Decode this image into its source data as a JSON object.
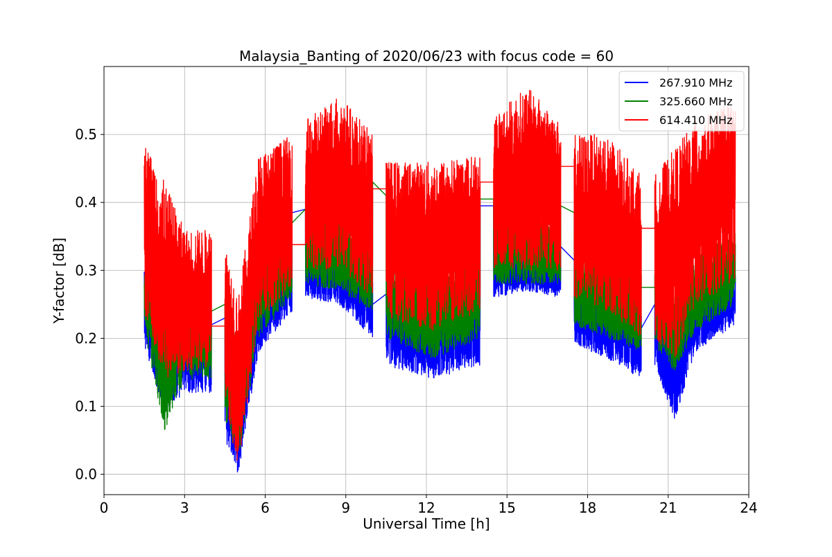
{
  "chart_data": {
    "type": "line",
    "title": "Malaysia_Banting of 2020/06/23 with focus code = 60",
    "xlabel": "Universal Time [h]",
    "ylabel": "Y-factor [dB]",
    "xlim": [
      0,
      24
    ],
    "ylim": [
      -0.03,
      0.6
    ],
    "xticks": [
      0,
      3,
      6,
      9,
      12,
      15,
      18,
      21,
      24
    ],
    "xtick_labels": [
      "0",
      "3",
      "6",
      "9",
      "12",
      "15",
      "18",
      "21",
      "24"
    ],
    "yticks": [
      0.0,
      0.1,
      0.2,
      0.3,
      0.4,
      0.5
    ],
    "ytick_labels": [
      "0.0",
      "0.1",
      "0.2",
      "0.3",
      "0.4",
      "0.5"
    ],
    "grid": true,
    "legend_position": "top-right",
    "segments": [
      {
        "start": 1.5,
        "end": 4.0
      },
      {
        "start": 4.5,
        "end": 7.0
      },
      {
        "start": 7.5,
        "end": 10.0
      },
      {
        "start": 10.5,
        "end": 14.0
      },
      {
        "start": 14.5,
        "end": 17.0
      },
      {
        "start": 17.5,
        "end": 20.0
      },
      {
        "start": 20.5,
        "end": 23.5
      }
    ],
    "series": [
      {
        "name": "267.910 MHz",
        "color": "#0000ff",
        "envelope": {
          "x": [
            1.5,
            2.25,
            3.0,
            4.0,
            4.5,
            5.0,
            5.75,
            7.0,
            7.5,
            8.75,
            10.0,
            10.5,
            12.25,
            14.0,
            14.5,
            15.75,
            17.0,
            17.5,
            18.75,
            20.0,
            20.5,
            21.25,
            22.0,
            23.5
          ],
          "low": [
            0.19,
            0.09,
            0.12,
            0.12,
            0.05,
            0.0,
            0.18,
            0.24,
            0.26,
            0.25,
            0.2,
            0.16,
            0.14,
            0.16,
            0.26,
            0.27,
            0.26,
            0.19,
            0.17,
            0.14,
            0.16,
            0.08,
            0.18,
            0.22
          ],
          "high": [
            0.3,
            0.26,
            0.24,
            0.22,
            0.2,
            0.15,
            0.3,
            0.34,
            0.34,
            0.34,
            0.3,
            0.28,
            0.26,
            0.28,
            0.32,
            0.34,
            0.32,
            0.3,
            0.28,
            0.26,
            0.26,
            0.2,
            0.28,
            0.3
          ]
        },
        "gap_lines": [
          [
            4.0,
            0.22,
            4.5,
            0.23
          ],
          [
            7.0,
            0.385,
            7.5,
            0.39
          ],
          [
            10.0,
            0.25,
            10.5,
            0.265
          ],
          [
            14.0,
            0.395,
            14.5,
            0.395
          ],
          [
            17.0,
            0.335,
            17.5,
            0.315
          ],
          [
            20.0,
            0.215,
            20.5,
            0.25
          ]
        ]
      },
      {
        "name": "325.660 MHz",
        "color": "#008000",
        "envelope": {
          "x": [
            1.5,
            2.25,
            3.0,
            4.0,
            4.5,
            5.0,
            5.75,
            7.0,
            7.5,
            8.75,
            10.0,
            10.5,
            12.25,
            14.0,
            14.5,
            15.75,
            17.0,
            17.5,
            18.75,
            20.0,
            20.5,
            21.25,
            22.0,
            23.5
          ],
          "low": [
            0.21,
            0.06,
            0.14,
            0.14,
            0.08,
            0.02,
            0.2,
            0.26,
            0.28,
            0.27,
            0.24,
            0.2,
            0.17,
            0.2,
            0.28,
            0.28,
            0.28,
            0.22,
            0.2,
            0.18,
            0.19,
            0.15,
            0.21,
            0.25
          ],
          "high": [
            0.32,
            0.3,
            0.28,
            0.26,
            0.24,
            0.2,
            0.35,
            0.4,
            0.4,
            0.38,
            0.34,
            0.32,
            0.3,
            0.32,
            0.36,
            0.38,
            0.36,
            0.34,
            0.32,
            0.3,
            0.3,
            0.26,
            0.32,
            0.36
          ]
        },
        "gap_lines": [
          [
            4.0,
            0.24,
            4.5,
            0.25
          ],
          [
            7.0,
            0.37,
            7.5,
            0.39
          ],
          [
            10.0,
            0.43,
            10.5,
            0.41
          ],
          [
            14.0,
            0.405,
            14.5,
            0.405
          ],
          [
            17.0,
            0.395,
            17.5,
            0.385
          ],
          [
            20.0,
            0.275,
            20.5,
            0.275
          ]
        ]
      },
      {
        "name": "614.410 MHz",
        "color": "#ff0000",
        "envelope": {
          "x": [
            1.5,
            2.25,
            3.0,
            4.0,
            4.5,
            5.0,
            5.75,
            7.0,
            7.5,
            8.75,
            10.0,
            10.5,
            12.25,
            14.0,
            14.5,
            15.75,
            17.0,
            17.5,
            18.75,
            20.0,
            20.5,
            21.25,
            22.0,
            23.5
          ],
          "low": [
            0.23,
            0.14,
            0.15,
            0.16,
            0.1,
            0.01,
            0.22,
            0.28,
            0.3,
            0.3,
            0.26,
            0.23,
            0.21,
            0.24,
            0.3,
            0.3,
            0.3,
            0.26,
            0.24,
            0.2,
            0.2,
            0.17,
            0.25,
            0.28
          ],
          "high": [
            0.49,
            0.43,
            0.36,
            0.36,
            0.34,
            0.26,
            0.47,
            0.5,
            0.52,
            0.56,
            0.5,
            0.46,
            0.46,
            0.47,
            0.53,
            0.57,
            0.52,
            0.5,
            0.5,
            0.44,
            0.44,
            0.48,
            0.52,
            0.55
          ]
        },
        "gap_lines": [
          [
            4.0,
            0.218,
            4.5,
            0.218
          ],
          [
            7.0,
            0.338,
            7.5,
            0.338
          ],
          [
            10.0,
            0.42,
            10.5,
            0.42
          ],
          [
            14.0,
            0.43,
            14.5,
            0.43
          ],
          [
            17.0,
            0.453,
            17.5,
            0.453
          ],
          [
            20.0,
            0.362,
            20.5,
            0.362
          ]
        ]
      }
    ]
  }
}
